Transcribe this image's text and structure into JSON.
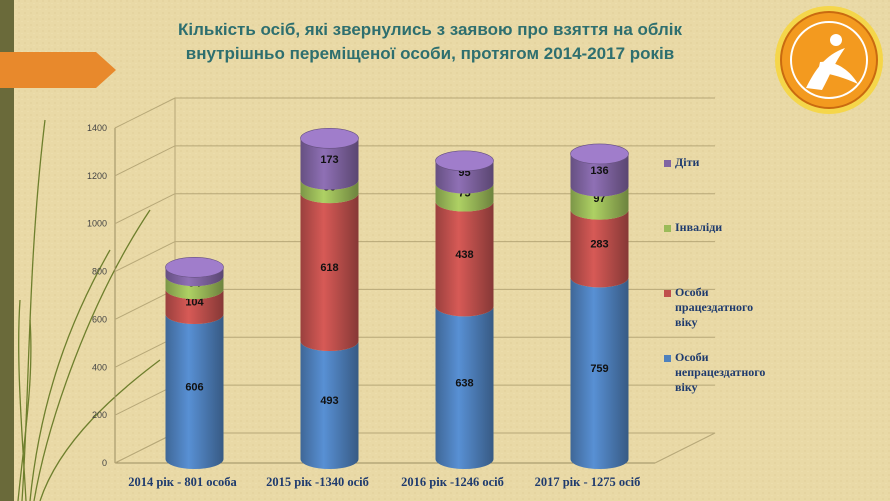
{
  "slide": {
    "title_line1": "Кількість осіб, які звернулись з заявою про взяття на облік",
    "title_line2": "внутрішньо переміщеної особи, протягом 2014-2017 років"
  },
  "colors": {
    "accent_arrow": "#e8892c",
    "logo": "#f39a1f",
    "title": "#2e6f6f"
  },
  "chart_data": {
    "type": "bar",
    "stacked": true,
    "style": "3d-cylinder",
    "categories": [
      "2014 рік - 801 особа",
      "2015 рік -1340 осіб",
      "2016 рік -1246 осіб",
      "2017 рік - 1275 осіб"
    ],
    "series": [
      {
        "name": "Особи непрацездатного віку",
        "color": "#4f81bd",
        "values": [
          606,
          493,
          638,
          759
        ]
      },
      {
        "name": "Особи працездатного віку",
        "color": "#c0504d",
        "values": [
          104,
          618,
          438,
          283
        ]
      },
      {
        "name": "Інваліди",
        "color": "#9bbb59",
        "values": [
          54,
          56,
          75,
          97
        ]
      },
      {
        "name": "Діти",
        "color": "#8064a2",
        "values": [
          37,
          173,
          95,
          136
        ]
      }
    ],
    "yticks": [
      "0",
      "200",
      "400",
      "600",
      "800",
      "1000",
      "1200",
      "1400"
    ],
    "ylim": [
      0,
      1400
    ],
    "grid": true,
    "legend_position": "right"
  },
  "legend": [
    {
      "line1": "Діти",
      "line2": "",
      "line3": ""
    },
    {
      "line1": "Інваліди",
      "line2": "",
      "line3": ""
    },
    {
      "line1": "Особи",
      "line2": "працездатного",
      "line3": "віку"
    },
    {
      "line1": "Особи",
      "line2": "непрацездатного",
      "line3": "віку"
    }
  ]
}
